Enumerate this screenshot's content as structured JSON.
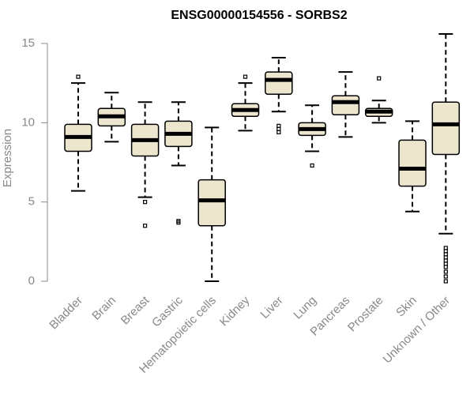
{
  "chart_data": {
    "type": "boxplot",
    "title": "ENSG00000154556 - SORBS2",
    "xlabel": "",
    "ylabel": "Expression",
    "ylim": [
      0,
      15
    ],
    "yticks": [
      0,
      5,
      10,
      15
    ],
    "grid": false,
    "colors": {
      "box_fill": "#ede6cf",
      "box_stroke": "#000000",
      "median": "#000000",
      "axis": "#888888",
      "label": "#888888",
      "title": "#000000"
    },
    "categories": [
      "Bladder",
      "Brain",
      "Breast",
      "Gastric",
      "Hematopoietic cells",
      "Kidney",
      "Liver",
      "Lung",
      "Pancreas",
      "Prostate",
      "Skin",
      "Unknown / Other"
    ],
    "boxes": [
      {
        "min": 5.7,
        "q1": 8.2,
        "median": 9.1,
        "q3": 9.9,
        "max": 12.5,
        "outliers": [
          12.9
        ]
      },
      {
        "min": 8.8,
        "q1": 9.8,
        "median": 10.4,
        "q3": 10.9,
        "max": 11.9,
        "outliers": []
      },
      {
        "min": 5.3,
        "q1": 7.9,
        "median": 8.9,
        "q3": 9.9,
        "max": 11.3,
        "outliers": [
          5.0,
          3.5
        ]
      },
      {
        "min": 7.3,
        "q1": 8.5,
        "median": 9.3,
        "q3": 10.1,
        "max": 11.3,
        "outliers": [
          3.8,
          3.7
        ]
      },
      {
        "min": 0.0,
        "q1": 3.5,
        "median": 5.1,
        "q3": 6.4,
        "max": 9.7,
        "outliers": []
      },
      {
        "min": 9.5,
        "q1": 10.4,
        "median": 10.8,
        "q3": 11.2,
        "max": 12.5,
        "outliers": [
          12.9
        ]
      },
      {
        "min": 10.7,
        "q1": 11.8,
        "median": 12.7,
        "q3": 13.2,
        "max": 14.1,
        "outliers": [
          9.8,
          9.6,
          9.4
        ]
      },
      {
        "min": 8.2,
        "q1": 9.2,
        "median": 9.6,
        "q3": 10.0,
        "max": 11.1,
        "outliers": [
          7.3
        ]
      },
      {
        "min": 9.1,
        "q1": 10.5,
        "median": 11.3,
        "q3": 11.7,
        "max": 13.2,
        "outliers": []
      },
      {
        "min": 10.0,
        "q1": 10.4,
        "median": 10.7,
        "q3": 10.9,
        "max": 11.4,
        "outliers": [
          12.8
        ]
      },
      {
        "min": 4.4,
        "q1": 6.0,
        "median": 7.1,
        "q3": 8.9,
        "max": 10.1,
        "outliers": []
      },
      {
        "min": 3.0,
        "q1": 8.0,
        "median": 9.9,
        "q3": 11.3,
        "max": 15.6,
        "outliers": [
          2.1,
          1.9,
          1.7,
          1.5,
          1.3,
          1.1,
          0.9,
          0.6,
          0.3,
          0.0
        ]
      }
    ]
  }
}
